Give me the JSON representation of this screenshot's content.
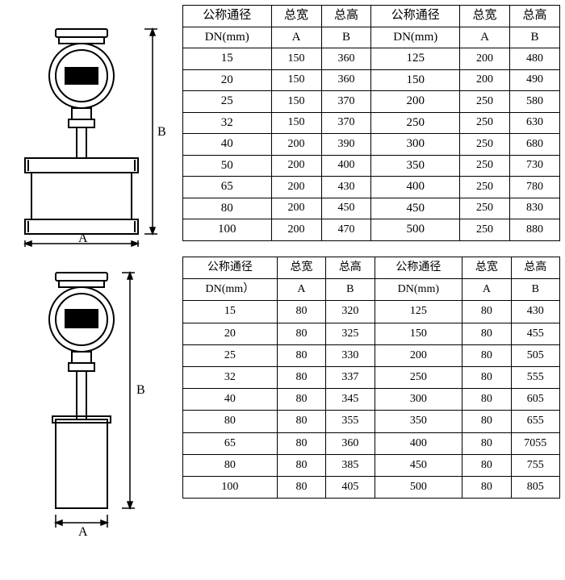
{
  "headers": {
    "dn_label_cn": "公称通径",
    "dn_label_en": "DN(mm)",
    "dn_label_en2": "DN(mm）",
    "width_cn": "总宽",
    "height_cn": "总高",
    "A": "A",
    "B": "B"
  },
  "table1": {
    "columns": [
      "公称通径 DN(mm)",
      "总宽 A",
      "总高 B",
      "公称通径 DN(mm)",
      "总宽 A",
      "总高 B"
    ],
    "rows": [
      [
        "15",
        "150",
        "360",
        "125",
        "200",
        "480"
      ],
      [
        "20",
        "150",
        "360",
        "150",
        "200",
        "490"
      ],
      [
        "25",
        "150",
        "370",
        "200",
        "250",
        "580"
      ],
      [
        "32",
        "150",
        "370",
        "250",
        "250",
        "630"
      ],
      [
        "40",
        "200",
        "390",
        "300",
        "250",
        "680"
      ],
      [
        "50",
        "200",
        "400",
        "350",
        "250",
        "730"
      ],
      [
        "65",
        "200",
        "430",
        "400",
        "250",
        "780"
      ],
      [
        "80",
        "200",
        "450",
        "450",
        "250",
        "830"
      ],
      [
        "100",
        "200",
        "470",
        "500",
        "250",
        "880"
      ]
    ],
    "border_color": "#000000",
    "background": "#ffffff"
  },
  "table2": {
    "rows": [
      [
        "15",
        "80",
        "320",
        "125",
        "80",
        "430"
      ],
      [
        "20",
        "80",
        "325",
        "150",
        "80",
        "455"
      ],
      [
        "25",
        "80",
        "330",
        "200",
        "80",
        "505"
      ],
      [
        "32",
        "80",
        "337",
        "250",
        "80",
        "555"
      ],
      [
        "40",
        "80",
        "345",
        "300",
        "80",
        "605"
      ],
      [
        "80",
        "80",
        "355",
        "350",
        "80",
        "655"
      ],
      [
        "65",
        "80",
        "360",
        "400",
        "80",
        "7055"
      ],
      [
        "80",
        "80",
        "385",
        "450",
        "80",
        "755"
      ],
      [
        "100",
        "80",
        "405",
        "500",
        "80",
        "805"
      ]
    ],
    "border_color": "#000000",
    "background": "#ffffff"
  },
  "diagram": {
    "label_A": "A",
    "label_B": "B",
    "stroke": "#000000",
    "fill": "#ffffff"
  }
}
